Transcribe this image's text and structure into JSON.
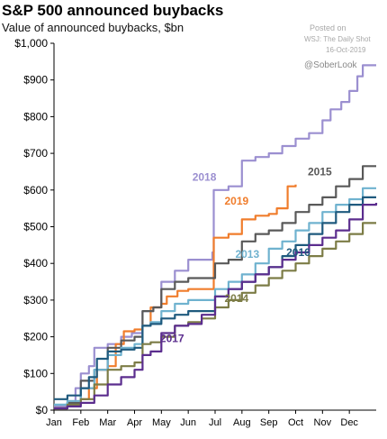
{
  "header": {
    "title": "S&P 500 announced buybacks",
    "subtitle": "Value of announced buybacks, $bn",
    "posted_on": "Posted on",
    "source": "WSJ: The Daily Shot",
    "date": "16-Oct-2019",
    "handle": "@SoberLook"
  },
  "chart_data": {
    "type": "line",
    "title": "S&P 500 announced buybacks",
    "subtitle": "Value of announced buybacks, $bn",
    "xlabel": "",
    "ylabel": "",
    "ylim": [
      0,
      1000
    ],
    "xlim": [
      0,
      12
    ],
    "y_ticks": [
      0,
      100,
      200,
      300,
      400,
      500,
      600,
      700,
      800,
      900,
      1000
    ],
    "y_tick_labels": [
      "$0",
      "$100",
      "$200",
      "$300",
      "$400",
      "$500",
      "$600",
      "$700",
      "$800",
      "$900",
      "$1,000"
    ],
    "x_ticks": [
      0,
      1,
      2,
      3,
      4,
      5,
      6,
      7,
      8,
      9,
      10,
      11
    ],
    "x_tick_labels": [
      "Jan",
      "Feb",
      "Mar",
      "Apr",
      "May",
      "Jun",
      "Jul",
      "Aug",
      "Sep",
      "Oct",
      "Nov",
      "Dec"
    ],
    "grid": false,
    "legend": "inline labels",
    "series": [
      {
        "name": "2018",
        "color": "#9b8fd0",
        "points": [
          [
            0,
            10
          ],
          [
            0.5,
            20
          ],
          [
            0.8,
            60
          ],
          [
            1.0,
            100
          ],
          [
            1.3,
            120
          ],
          [
            1.5,
            170
          ],
          [
            2.0,
            180
          ],
          [
            2.5,
            200
          ],
          [
            2.9,
            210
          ],
          [
            3.3,
            270
          ],
          [
            3.7,
            280
          ],
          [
            4.0,
            350
          ],
          [
            4.5,
            380
          ],
          [
            5.0,
            410
          ],
          [
            5.9,
            430
          ],
          [
            5.95,
            600
          ],
          [
            6.5,
            610
          ],
          [
            7.0,
            680
          ],
          [
            7.5,
            690
          ],
          [
            8.0,
            700
          ],
          [
            8.5,
            720
          ],
          [
            9.0,
            740
          ],
          [
            9.5,
            755
          ],
          [
            10.0,
            790
          ],
          [
            10.3,
            820
          ],
          [
            10.7,
            840
          ],
          [
            11.0,
            870
          ],
          [
            11.3,
            910
          ],
          [
            11.5,
            940
          ],
          [
            12.0,
            940
          ]
        ]
      },
      {
        "name": "2019",
        "color": "#f07d2c",
        "points": [
          [
            0,
            5
          ],
          [
            0.5,
            15
          ],
          [
            1.0,
            30
          ],
          [
            1.3,
            60
          ],
          [
            1.6,
            110
          ],
          [
            2.0,
            120
          ],
          [
            2.3,
            180
          ],
          [
            2.6,
            215
          ],
          [
            3.0,
            220
          ],
          [
            3.3,
            230
          ],
          [
            3.6,
            280
          ],
          [
            4.0,
            290
          ],
          [
            4.2,
            310
          ],
          [
            4.6,
            325
          ],
          [
            5.0,
            330
          ],
          [
            5.9,
            330
          ],
          [
            5.95,
            470
          ],
          [
            6.5,
            480
          ],
          [
            7.0,
            520
          ],
          [
            7.5,
            530
          ],
          [
            8.0,
            535
          ],
          [
            8.3,
            550
          ],
          [
            8.7,
            610
          ],
          [
            9.0,
            615
          ]
        ]
      },
      {
        "name": "2015",
        "color": "#595959",
        "points": [
          [
            0,
            5
          ],
          [
            0.5,
            20
          ],
          [
            1.0,
            80
          ],
          [
            1.5,
            110
          ],
          [
            2.0,
            170
          ],
          [
            2.5,
            190
          ],
          [
            3.0,
            200
          ],
          [
            3.3,
            270
          ],
          [
            3.7,
            280
          ],
          [
            4.0,
            330
          ],
          [
            4.5,
            350
          ],
          [
            5.0,
            360
          ],
          [
            5.5,
            360
          ],
          [
            6.0,
            400
          ],
          [
            6.5,
            410
          ],
          [
            7.0,
            460
          ],
          [
            7.5,
            480
          ],
          [
            8.0,
            490
          ],
          [
            8.5,
            510
          ],
          [
            9.0,
            540
          ],
          [
            9.5,
            560
          ],
          [
            10.0,
            580
          ],
          [
            10.5,
            610
          ],
          [
            11.0,
            630
          ],
          [
            11.5,
            665
          ],
          [
            12.0,
            665
          ]
        ]
      },
      {
        "name": "2013",
        "color": "#6fb2cf",
        "points": [
          [
            0,
            15
          ],
          [
            0.5,
            25
          ],
          [
            1.0,
            60
          ],
          [
            1.5,
            110
          ],
          [
            2.0,
            150
          ],
          [
            2.5,
            170
          ],
          [
            3.0,
            180
          ],
          [
            3.3,
            230
          ],
          [
            3.6,
            240
          ],
          [
            4.0,
            270
          ],
          [
            4.5,
            290
          ],
          [
            5.0,
            300
          ],
          [
            5.5,
            300
          ],
          [
            6.0,
            330
          ],
          [
            6.5,
            350
          ],
          [
            7.0,
            370
          ],
          [
            7.5,
            400
          ],
          [
            8.0,
            440
          ],
          [
            8.5,
            460
          ],
          [
            9.0,
            490
          ],
          [
            9.5,
            510
          ],
          [
            10.0,
            540
          ],
          [
            10.5,
            560
          ],
          [
            11.0,
            575
          ],
          [
            11.5,
            605
          ],
          [
            12.0,
            605
          ]
        ]
      },
      {
        "name": "2016",
        "color": "#1f5a7e",
        "points": [
          [
            0,
            30
          ],
          [
            0.5,
            40
          ],
          [
            1.0,
            60
          ],
          [
            1.3,
            90
          ],
          [
            1.6,
            140
          ],
          [
            2.0,
            160
          ],
          [
            2.5,
            165
          ],
          [
            3.0,
            170
          ],
          [
            3.3,
            230
          ],
          [
            3.6,
            235
          ],
          [
            4.0,
            250
          ],
          [
            4.5,
            260
          ],
          [
            5.0,
            270
          ],
          [
            5.5,
            270
          ],
          [
            6.0,
            310
          ],
          [
            6.5,
            330
          ],
          [
            7.0,
            350
          ],
          [
            7.5,
            370
          ],
          [
            8.0,
            390
          ],
          [
            8.5,
            420
          ],
          [
            9.0,
            450
          ],
          [
            9.5,
            480
          ],
          [
            10.0,
            510
          ],
          [
            10.5,
            540
          ],
          [
            11.0,
            560
          ],
          [
            11.5,
            580
          ],
          [
            12.0,
            580
          ]
        ]
      },
      {
        "name": "2014",
        "color": "#7c7c46",
        "points": [
          [
            0,
            5
          ],
          [
            0.5,
            15
          ],
          [
            1.0,
            30
          ],
          [
            1.5,
            70
          ],
          [
            2.0,
            110
          ],
          [
            2.5,
            120
          ],
          [
            3.0,
            130
          ],
          [
            3.3,
            180
          ],
          [
            3.6,
            185
          ],
          [
            4.0,
            200
          ],
          [
            4.5,
            230
          ],
          [
            5.0,
            240
          ],
          [
            5.5,
            250
          ],
          [
            6.0,
            280
          ],
          [
            6.5,
            300
          ],
          [
            7.0,
            320
          ],
          [
            7.5,
            340
          ],
          [
            8.0,
            360
          ],
          [
            8.5,
            380
          ],
          [
            9.0,
            400
          ],
          [
            9.5,
            420
          ],
          [
            10.0,
            440
          ],
          [
            10.5,
            460
          ],
          [
            11.0,
            480
          ],
          [
            11.5,
            510
          ],
          [
            12.0,
            510
          ]
        ]
      },
      {
        "name": "2017",
        "color": "#5b2d8e",
        "points": [
          [
            0,
            5
          ],
          [
            0.5,
            10
          ],
          [
            1.0,
            20
          ],
          [
            1.5,
            40
          ],
          [
            2.0,
            70
          ],
          [
            2.5,
            90
          ],
          [
            3.0,
            110
          ],
          [
            3.3,
            150
          ],
          [
            3.6,
            160
          ],
          [
            4.0,
            210
          ],
          [
            4.5,
            230
          ],
          [
            5.0,
            235
          ],
          [
            5.5,
            260
          ],
          [
            6.0,
            310
          ],
          [
            6.5,
            330
          ],
          [
            7.0,
            350
          ],
          [
            7.5,
            370
          ],
          [
            8.0,
            390
          ],
          [
            8.5,
            410
          ],
          [
            9.0,
            430
          ],
          [
            9.5,
            450
          ],
          [
            10.0,
            470
          ],
          [
            10.5,
            490
          ],
          [
            11.0,
            520
          ],
          [
            11.5,
            560
          ],
          [
            12.0,
            565
          ]
        ]
      }
    ],
    "labels": [
      {
        "text": "2018",
        "x": 5.6,
        "y": 625,
        "color": "#9b8fd0"
      },
      {
        "text": "2019",
        "x": 6.8,
        "y": 560,
        "color": "#f07d2c"
      },
      {
        "text": "2015",
        "x": 9.9,
        "y": 640,
        "color": "#595959"
      },
      {
        "text": "2013",
        "x": 7.2,
        "y": 415,
        "color": "#6fb2cf"
      },
      {
        "text": "2016",
        "x": 9.1,
        "y": 420,
        "color": "#1f5a7e"
      },
      {
        "text": "2014",
        "x": 6.8,
        "y": 295,
        "color": "#7c7c46"
      },
      {
        "text": "2017",
        "x": 4.4,
        "y": 185,
        "color": "#5b2d8e"
      }
    ]
  }
}
